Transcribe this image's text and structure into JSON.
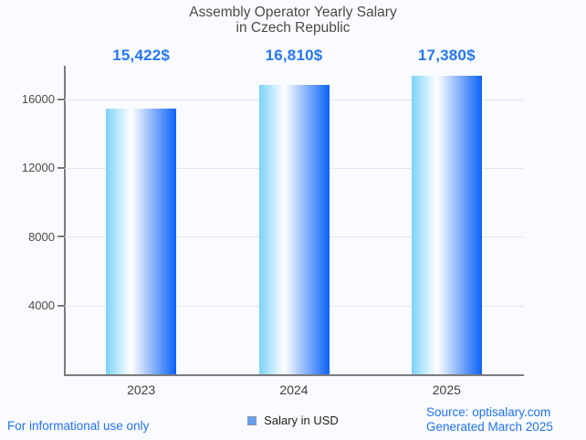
{
  "title": {
    "line1": "Assembly Operator Yearly Salary",
    "line2": "in Czech Republic"
  },
  "chart_data": {
    "type": "bar",
    "title": "Assembly Operator Yearly Salary in Czech Republic",
    "categories": [
      "2023",
      "2024",
      "2025"
    ],
    "series": [
      {
        "name": "Salary in USD",
        "values": [
          15422,
          16810,
          17380
        ]
      }
    ],
    "value_labels": [
      "15,422$",
      "16,810$",
      "17,380$"
    ],
    "xlabel": "",
    "ylabel": "",
    "ylim": [
      0,
      17940
    ],
    "yticks": [
      4000,
      8000,
      12000,
      16000
    ],
    "grid": true,
    "legend_position": "bottom-center",
    "bar_gradient": [
      "#7dd2fa",
      "#ffffff",
      "#0a62f7"
    ],
    "value_label_color": "#2777f2"
  },
  "legend": {
    "label": "Salary in USD",
    "swatch_fill": "#66a1f1",
    "swatch_border": "#8796a6"
  },
  "footer": {
    "disclaimer": "For informational use only",
    "source": "Source: optisalary.com",
    "generated": "Generated March 2025",
    "link_color": "#2173f0"
  }
}
